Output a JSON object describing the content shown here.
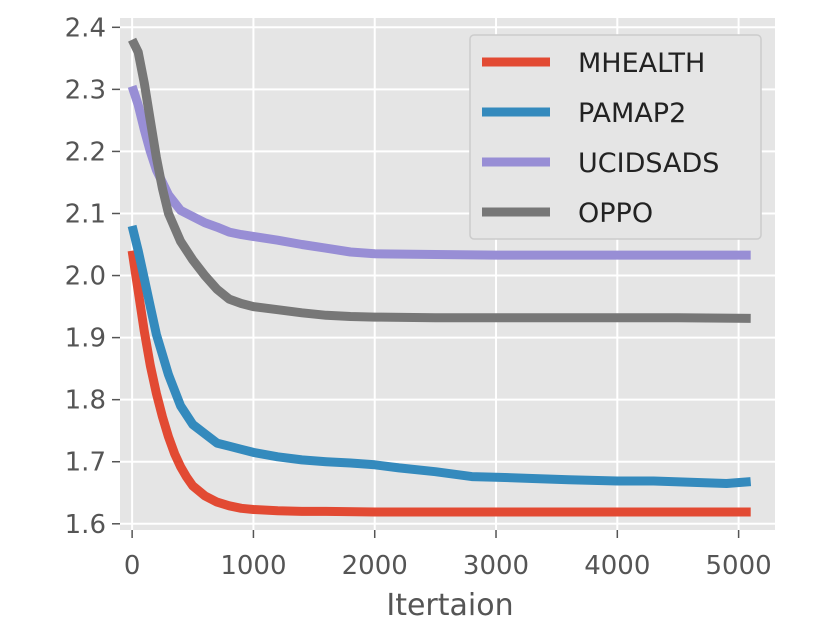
{
  "chart_data": {
    "type": "line",
    "title": "",
    "xlabel": "Itertaion",
    "ylabel": "",
    "xlim": [
      -100,
      5300
    ],
    "ylim": [
      1.59,
      2.415
    ],
    "xticks": [
      0,
      1000,
      2000,
      3000,
      4000,
      5000
    ],
    "xtick_labels": [
      "0",
      "1000",
      "2000",
      "3000",
      "4000",
      "5000"
    ],
    "yticks": [
      1.6,
      1.7,
      1.8,
      1.9,
      2.0,
      2.1,
      2.2,
      2.3,
      2.4
    ],
    "ytick_labels": [
      "1.6",
      "1.7",
      "1.8",
      "1.9",
      "2.0",
      "2.1",
      "2.2",
      "2.3",
      "2.4"
    ],
    "grid": true,
    "legend_position": "top-right",
    "series": [
      {
        "name": "MHEALTH",
        "color": "#E24A33",
        "x": [
          0,
          50,
          100,
          150,
          200,
          250,
          300,
          350,
          400,
          450,
          500,
          600,
          700,
          800,
          900,
          1000,
          1200,
          1400,
          1600,
          2000,
          2500,
          3000,
          3500,
          4000,
          4500,
          5100
        ],
        "y": [
          2.04,
          1.975,
          1.91,
          1.855,
          1.81,
          1.772,
          1.74,
          1.713,
          1.692,
          1.675,
          1.661,
          1.645,
          1.635,
          1.629,
          1.625,
          1.623,
          1.621,
          1.62,
          1.62,
          1.619,
          1.619,
          1.619,
          1.619,
          1.619,
          1.619,
          1.619
        ]
      },
      {
        "name": "PAMAP2",
        "color": "#348ABD",
        "x": [
          0,
          50,
          100,
          150,
          200,
          300,
          400,
          500,
          600,
          700,
          800,
          900,
          1000,
          1200,
          1400,
          1600,
          1800,
          2000,
          2200,
          2500,
          2800,
          3000,
          3300,
          3600,
          4000,
          4300,
          4600,
          4900,
          5100
        ],
        "y": [
          2.08,
          2.04,
          1.995,
          1.95,
          1.905,
          1.84,
          1.79,
          1.76,
          1.745,
          1.73,
          1.725,
          1.72,
          1.715,
          1.708,
          1.703,
          1.7,
          1.698,
          1.695,
          1.69,
          1.684,
          1.676,
          1.675,
          1.673,
          1.671,
          1.669,
          1.669,
          1.667,
          1.665,
          1.668
        ]
      },
      {
        "name": "UCIDSADS",
        "color": "#988ED5",
        "x": [
          0,
          50,
          100,
          150,
          200,
          300,
          400,
          500,
          600,
          700,
          800,
          900,
          1000,
          1200,
          1400,
          1600,
          1800,
          2000,
          2500,
          3000,
          3500,
          4000,
          4500,
          5100
        ],
        "y": [
          2.305,
          2.275,
          2.235,
          2.2,
          2.17,
          2.13,
          2.105,
          2.095,
          2.085,
          2.078,
          2.07,
          2.066,
          2.063,
          2.057,
          2.05,
          2.044,
          2.038,
          2.035,
          2.034,
          2.033,
          2.033,
          2.033,
          2.033,
          2.033
        ]
      },
      {
        "name": "OPPO",
        "color": "#777777",
        "x": [
          0,
          50,
          100,
          150,
          200,
          250,
          300,
          400,
          500,
          600,
          700,
          800,
          900,
          1000,
          1200,
          1400,
          1600,
          1800,
          2000,
          2500,
          3000,
          3500,
          4000,
          4500,
          5100
        ],
        "y": [
          2.38,
          2.36,
          2.31,
          2.25,
          2.19,
          2.14,
          2.1,
          2.055,
          2.025,
          2.0,
          1.978,
          1.962,
          1.955,
          1.95,
          1.945,
          1.94,
          1.936,
          1.934,
          1.933,
          1.932,
          1.932,
          1.932,
          1.932,
          1.932,
          1.931
        ]
      }
    ]
  }
}
